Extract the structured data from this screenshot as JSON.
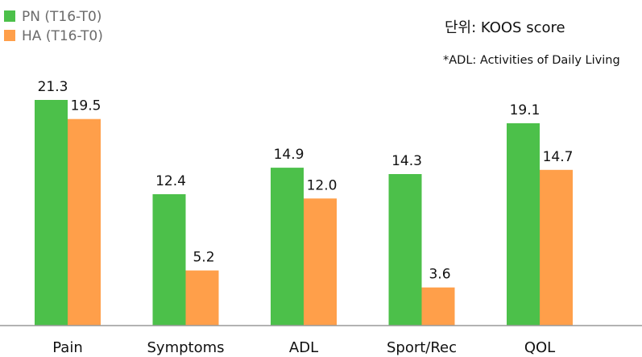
{
  "chart_data": {
    "type": "bar",
    "categories": [
      "Pain",
      "Symptoms",
      "ADL",
      "Sport/Rec",
      "QOL"
    ],
    "series": [
      {
        "name": "PN (T16-T0)",
        "color": "#4cc04a",
        "values": [
          21.3,
          12.4,
          14.9,
          14.3,
          19.1
        ],
        "labels": [
          "21.3",
          "12.4",
          "14.9",
          "14.3",
          "19.1"
        ]
      },
      {
        "name": "HA (T16-T0)",
        "color": "#ff9f4a",
        "values": [
          19.5,
          5.2,
          12.0,
          3.6,
          14.7
        ],
        "labels": [
          "19.5",
          "5.2",
          "12.0",
          "3.6",
          "14.7"
        ]
      }
    ],
    "ylim": [
      0,
      21.3
    ],
    "grid": false,
    "legend_position": "top-left",
    "unit_note": "단위: KOOS score",
    "annotation": "*ADL: Activities of Daily Living"
  }
}
